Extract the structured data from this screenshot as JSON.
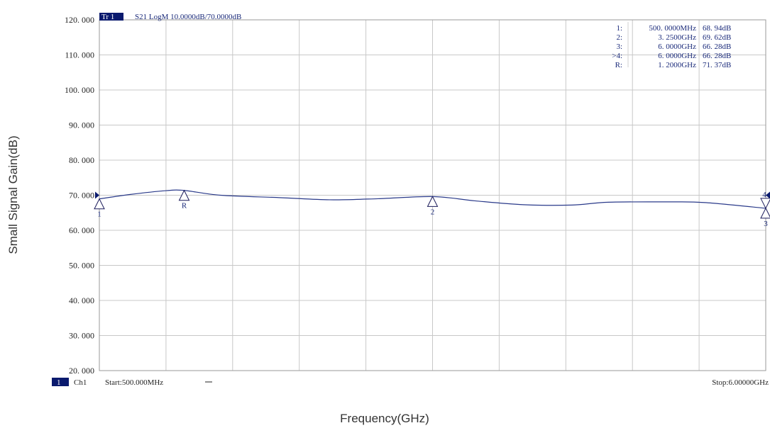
{
  "chart_data": {
    "type": "line",
    "title": "S21 LogM 10.0000dB/70.0000dB",
    "trace_label": "Tr 1",
    "channel_label": "Ch1",
    "channel_number": "1",
    "start_label": "Start:500.000MHz",
    "stop_label": "Stop:6.00000GHz",
    "xlabel": "Frequency(GHz)",
    "ylabel": "Small Signal Gain(dB)",
    "ylim": [
      20,
      120
    ],
    "xlim": [
      0.5,
      6.0
    ],
    "yticks": [
      "20. 000",
      "30. 000",
      "40. 000",
      "50. 000",
      "60. 000",
      "70. 000",
      "80. 000",
      "90. 000",
      "100. 000",
      "110. 000",
      "120. 000"
    ],
    "grid": true,
    "x_divisions": 10,
    "series": [
      {
        "color": "#2a3a8a",
        "x": [
          0.5,
          0.75,
          1.05,
          1.2,
          1.5,
          2.0,
          2.4,
          2.8,
          3.25,
          3.6,
          4.0,
          4.4,
          4.7,
          5.2,
          5.5,
          6.0
        ],
        "y": [
          68.94,
          70.2,
          71.3,
          71.37,
          70.0,
          69.3,
          68.7,
          69.0,
          69.62,
          68.4,
          67.3,
          67.2,
          68.0,
          68.1,
          67.9,
          66.28
        ]
      }
    ],
    "markers": [
      {
        "id": "1",
        "x": 0.5,
        "y": 68.94,
        "freq": "500. 0000MHz",
        "value": "68. 94dB",
        "row_label": "1:"
      },
      {
        "id": "2",
        "x": 3.25,
        "y": 69.62,
        "freq": "3. 2500GHz",
        "value": "69. 62dB",
        "row_label": "2:"
      },
      {
        "id": "3",
        "x": 6.0,
        "y": 66.28,
        "freq": "6. 0000GHz",
        "value": "66. 28dB",
        "row_label": "3:"
      },
      {
        "id": "4",
        "x": 6.0,
        "y": 66.28,
        "freq": "6. 0000GHz",
        "value": "66. 28dB",
        "row_label": ">4:"
      },
      {
        "id": "R",
        "x": 1.2,
        "y": 71.37,
        "freq": "1. 2000GHz",
        "value": "71. 37dB",
        "row_label": "R:"
      }
    ]
  }
}
